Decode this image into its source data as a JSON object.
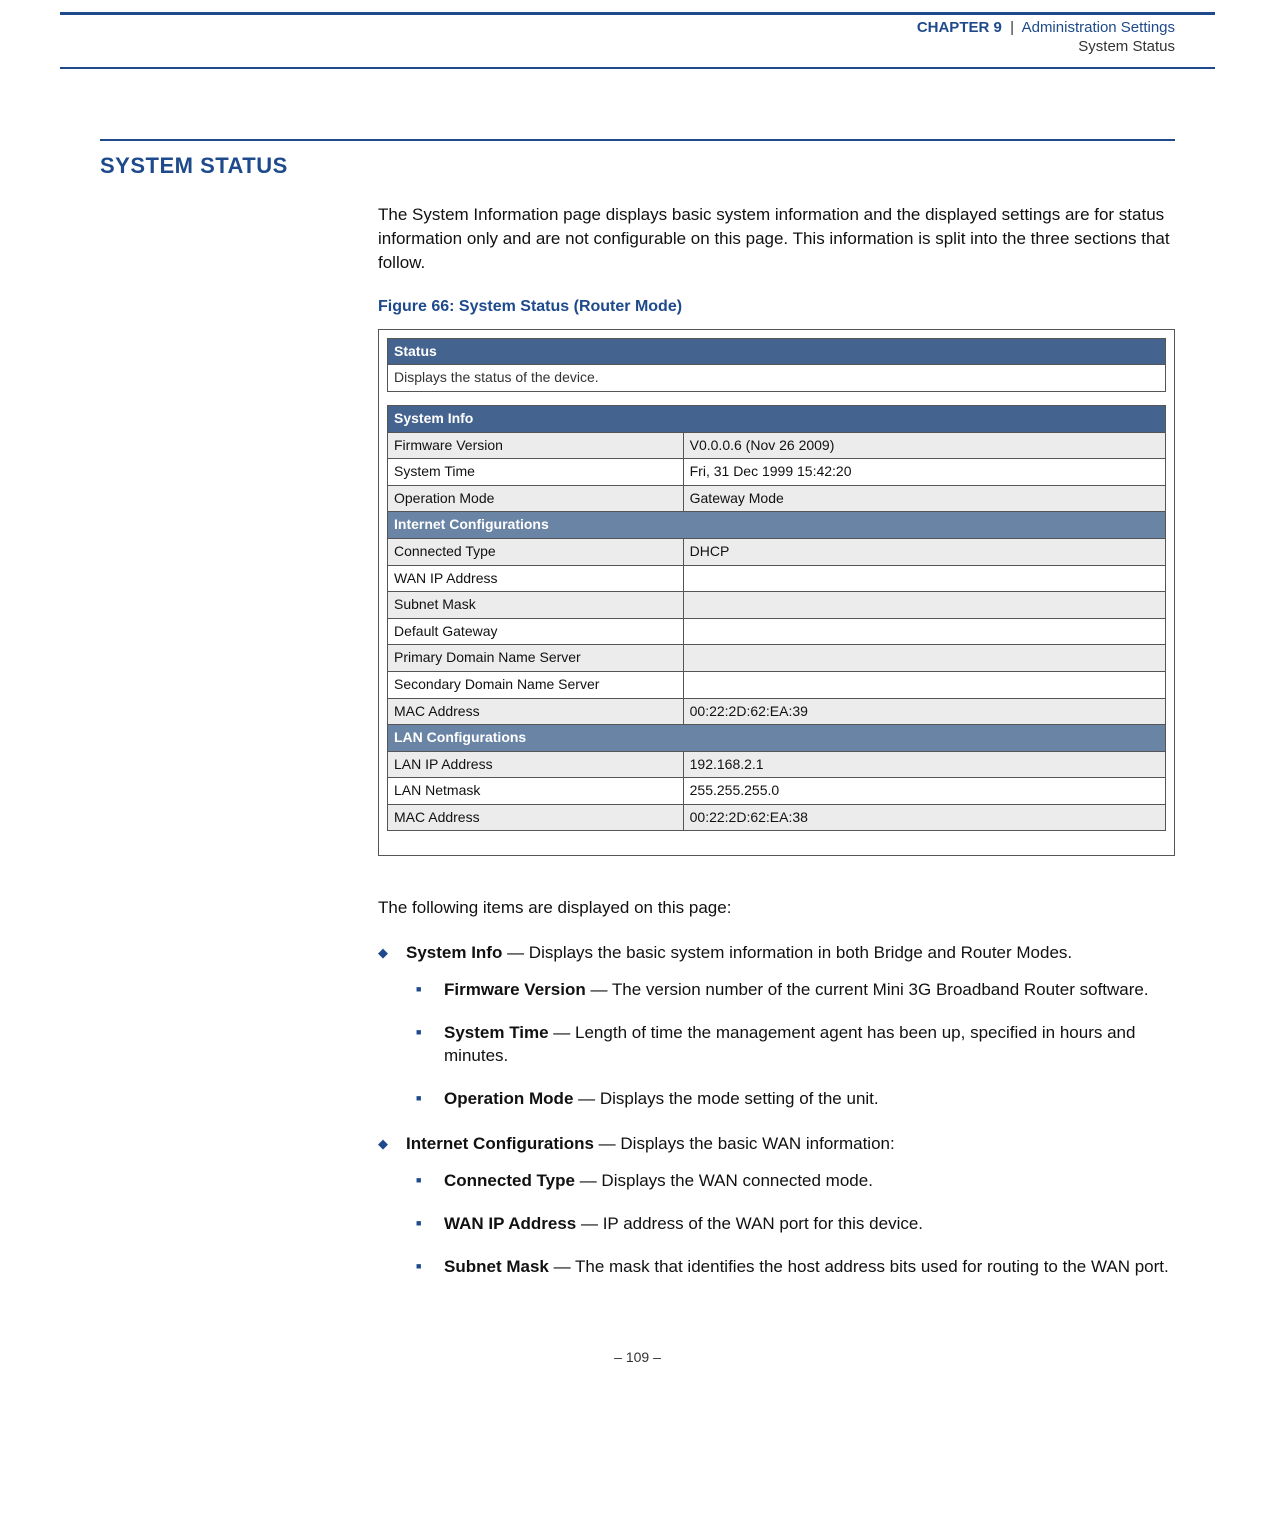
{
  "header": {
    "chapter": "CHAPTER 9",
    "sep": "|",
    "title": "Administration Settings",
    "subtitle": "System Status"
  },
  "section_heading": "SYSTEM STATUS",
  "intro_para": "The System Information page displays basic system information and the displayed settings are for status information only and are not configurable on this page. This information is split into the three sections that follow.",
  "figure_caption": "Figure 66:  System Status (Router Mode)",
  "figure": {
    "status_header": "Status",
    "status_note": "Displays the status of the device.",
    "sysinfo_header": "System Info",
    "rows_sysinfo": [
      {
        "label": "Firmware Version",
        "value": "V0.0.0.6 (Nov 26 2009)"
      },
      {
        "label": "System Time",
        "value": "Fri, 31 Dec 1999 15:42:20"
      },
      {
        "label": "Operation Mode",
        "value": "Gateway Mode"
      }
    ],
    "inet_header": "Internet Configurations",
    "rows_inet": [
      {
        "label": "Connected Type",
        "value": "DHCP"
      },
      {
        "label": "WAN IP Address",
        "value": ""
      },
      {
        "label": "Subnet Mask",
        "value": ""
      },
      {
        "label": "Default Gateway",
        "value": ""
      },
      {
        "label": "Primary Domain Name Server",
        "value": ""
      },
      {
        "label": "Secondary Domain Name Server",
        "value": ""
      },
      {
        "label": "MAC Address",
        "value": "00:22:2D:62:EA:39"
      }
    ],
    "lan_header": "LAN Configurations",
    "rows_lan": [
      {
        "label": "LAN IP Address",
        "value": "192.168.2.1"
      },
      {
        "label": "LAN Netmask",
        "value": "255.255.255.0"
      },
      {
        "label": "MAC Address",
        "value": "00:22:2D:62:EA:38"
      }
    ]
  },
  "items_intro": "The following items are displayed on this page:",
  "bullets": {
    "sysinfo_label": "System Info",
    "sysinfo_rest": " — Displays the basic system information in both Bridge and Router Modes.",
    "fw_label": "Firmware Version",
    "fw_rest": " — The version number of the current Mini 3G Broadband Router software.",
    "st_label": "System Time",
    "st_rest": " — Length of time the management agent has been up, specified in hours and minutes.",
    "om_label": "Operation Mode",
    "om_rest": " — Displays the mode setting of the unit.",
    "ic_label": "Internet Configurations",
    "ic_rest": " — Displays the basic WAN information:",
    "ct_label": "Connected Type",
    "ct_rest": " — Displays the WAN connected mode.",
    "wan_label": "WAN IP Address",
    "wan_rest": " — IP address of the WAN port for this device.",
    "sm_label": "Subnet Mask",
    "sm_rest": " — The mask that identifies the host address bits used for routing to the WAN port."
  },
  "footer": "–  109  –",
  "colors": {
    "accent": "#1e4a8c",
    "table_header_dark": "#44648f",
    "table_header_mid": "#6a84a6",
    "row_alt": "#ececec"
  }
}
